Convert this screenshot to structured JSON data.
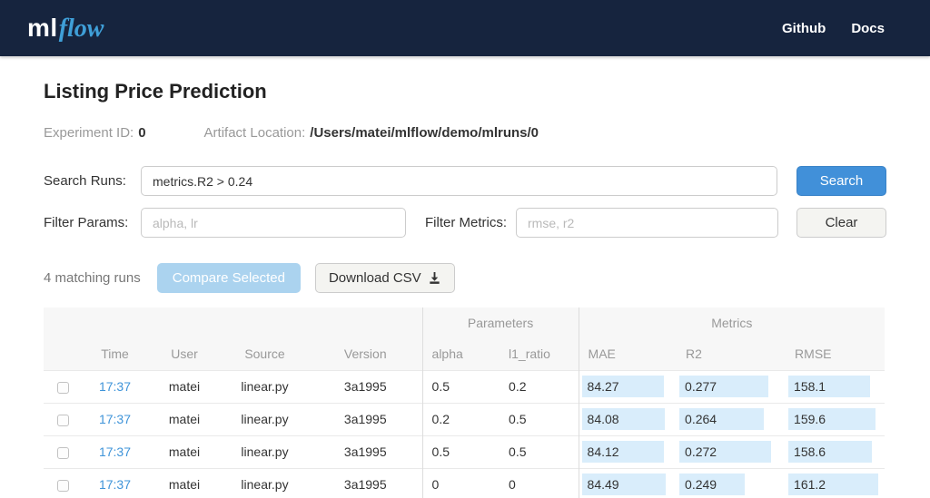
{
  "navbar": {
    "logo_ml": "ml",
    "logo_flow": "flow",
    "links": [
      {
        "label": "Github"
      },
      {
        "label": "Docs"
      }
    ]
  },
  "header": {
    "title": "Listing Price Prediction",
    "experiment_id_label": "Experiment ID:",
    "experiment_id": "0",
    "artifact_location_label": "Artifact Location:",
    "artifact_location": "/Users/matei/mlflow/demo/mlruns/0"
  },
  "search": {
    "label": "Search Runs:",
    "value": "metrics.R2 > 0.24",
    "button_label": "Search"
  },
  "filters": {
    "params_label": "Filter Params:",
    "params_placeholder": "alpha, lr",
    "metrics_label": "Filter Metrics:",
    "metrics_placeholder": "rmse, r2",
    "clear_button_label": "Clear"
  },
  "actions": {
    "matching_runs": "4 matching runs",
    "compare_button_label": "Compare Selected",
    "download_button_label": "Download CSV",
    "download_icon": "download-icon"
  },
  "table": {
    "group_headers": {
      "parameters": "Parameters",
      "metrics": "Metrics"
    },
    "columns": {
      "time": "Time",
      "user": "User",
      "source": "Source",
      "version": "Version",
      "alpha": "alpha",
      "l1_ratio": "l1_ratio",
      "mae": "MAE",
      "r2": "R2",
      "rmse": "RMSE"
    },
    "rows": [
      {
        "time": "17:37",
        "user": "matei",
        "source": "linear.py",
        "version": "3a1995",
        "alpha": "0.5",
        "l1_ratio": "0.2",
        "mae": "84.27",
        "r2": "0.277",
        "rmse": "158.1",
        "mae_bar": 90,
        "r2_bar": 87,
        "rmse_bar": 88
      },
      {
        "time": "17:37",
        "user": "matei",
        "source": "linear.py",
        "version": "3a1995",
        "alpha": "0.2",
        "l1_ratio": "0.5",
        "mae": "84.08",
        "r2": "0.264",
        "rmse": "159.6",
        "mae_bar": 91,
        "r2_bar": 82,
        "rmse_bar": 94
      },
      {
        "time": "17:37",
        "user": "matei",
        "source": "linear.py",
        "version": "3a1995",
        "alpha": "0.5",
        "l1_ratio": "0.5",
        "mae": "84.12",
        "r2": "0.272",
        "rmse": "158.6",
        "mae_bar": 90,
        "r2_bar": 89,
        "rmse_bar": 90
      },
      {
        "time": "17:37",
        "user": "matei",
        "source": "linear.py",
        "version": "3a1995",
        "alpha": "0",
        "l1_ratio": "0",
        "mae": "84.49",
        "r2": "0.249",
        "rmse": "161.2",
        "mae_bar": 92,
        "r2_bar": 64,
        "rmse_bar": 97
      }
    ]
  },
  "colors": {
    "navbar_bg": "#16243e",
    "logo_blue": "#3f9fd8",
    "primary_button_blue": "#4190d9",
    "compare_disabled_blue": "#abd3ef",
    "time_link_blue": "#3f94d9",
    "metric_bar_blue": "#d9edfb",
    "header_bg": "#f7f7f7"
  }
}
